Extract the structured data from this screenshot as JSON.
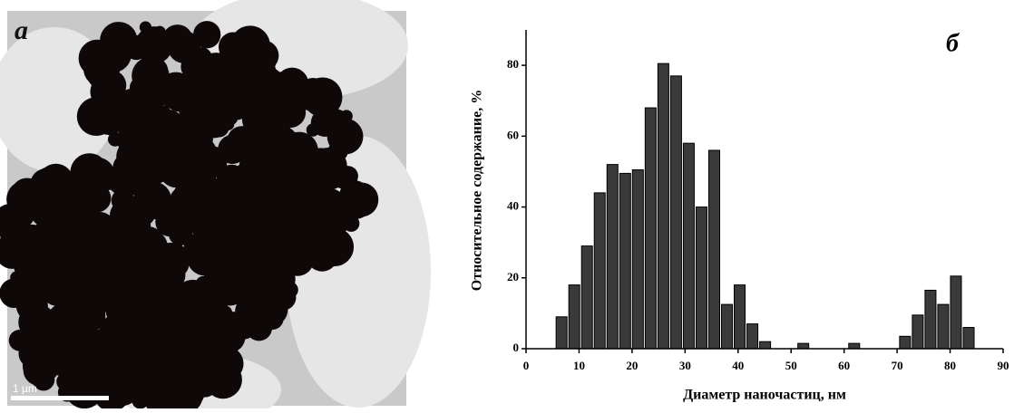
{
  "panel_a": {
    "label": "а",
    "scale_bar": "1 µm"
  },
  "chart_data": {
    "type": "histogram",
    "annotation": "б",
    "xlabel": "Диаметр наночастиц, нм",
    "ylabel": "Относительное содержание, %",
    "bins": [
      5.5,
      7.9,
      10.3,
      12.7,
      15.1,
      17.5,
      19.9,
      22.3,
      24.7,
      27.1,
      29.5,
      31.9,
      34.3,
      36.7,
      39.1,
      41.5,
      43.9,
      46.3,
      48.7,
      51.1,
      53.5,
      55.9,
      58.3,
      60.7,
      63.1,
      65.5,
      67.9,
      70.3,
      72.7,
      75.1,
      77.5,
      79.9,
      82.3,
      84.7
    ],
    "values": [
      9,
      18,
      29,
      44,
      52,
      49.5,
      50.5,
      68,
      80.5,
      77,
      58,
      40,
      56,
      12.5,
      18,
      7,
      2,
      0,
      0,
      1.5,
      0,
      0,
      0,
      1.5,
      0,
      0,
      0,
      3.5,
      9.5,
      16.5,
      12.5,
      20.5,
      6
    ],
    "color": "#3a3a3a",
    "xlim": [
      0,
      90
    ],
    "xticks": [
      0,
      10,
      20,
      30,
      40,
      50,
      60,
      70,
      80,
      90
    ],
    "ylim": [
      0,
      90
    ],
    "yticks": [
      0,
      20,
      40,
      60,
      80
    ]
  }
}
